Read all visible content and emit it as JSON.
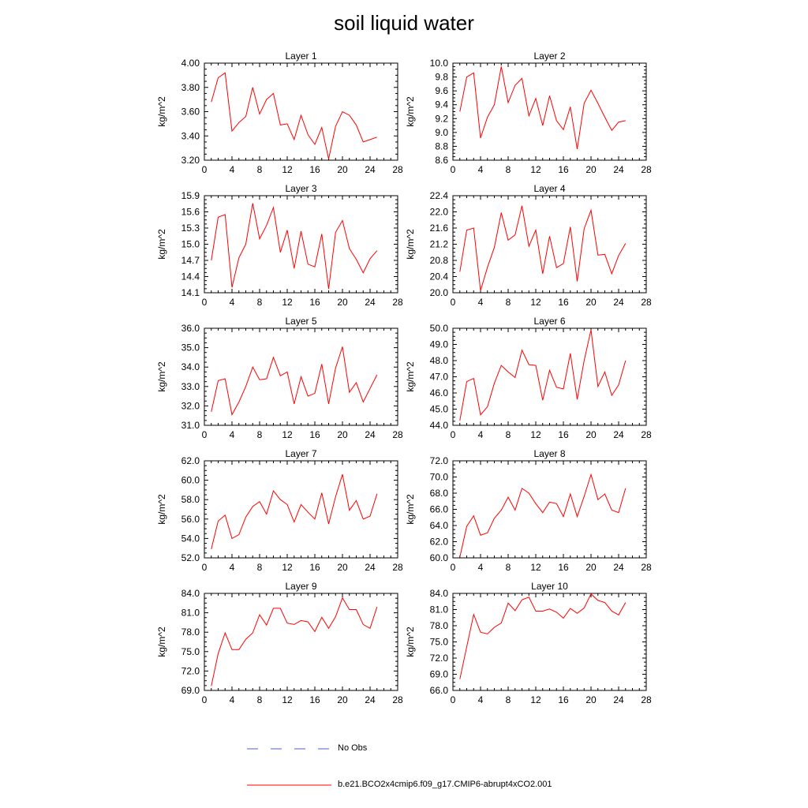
{
  "title": "soil liquid water",
  "legend": {
    "obs_label": "No Obs",
    "obs_color": "#4b5fc4",
    "model_label": "b.e21.BCO2x4cmip6.f09_g17.CMIP6-abrupt4xCO2.001",
    "model_color": "#ff0000"
  },
  "chart_data": [
    {
      "type": "line",
      "title": "Layer 1",
      "ylabel": "kg/m^2",
      "xlim": [
        0,
        28
      ],
      "xticks": [
        0,
        4,
        8,
        12,
        16,
        20,
        24,
        28
      ],
      "ylim": [
        3.2,
        4.0
      ],
      "yticks": [
        "3.20",
        "3.40",
        "3.60",
        "3.80",
        "4.00"
      ],
      "series": [
        {
          "color": "#ff0000",
          "x": [
            1,
            2,
            3,
            4,
            5,
            6,
            7,
            8,
            9,
            10,
            11,
            12,
            13,
            14,
            15,
            16,
            17,
            18,
            19,
            20,
            21,
            22,
            23,
            24,
            25
          ],
          "values": [
            3.68,
            3.88,
            3.92,
            3.44,
            3.51,
            3.56,
            3.8,
            3.58,
            3.7,
            3.75,
            3.49,
            3.5,
            3.37,
            3.57,
            3.41,
            3.33,
            3.47,
            3.21,
            3.48,
            3.6,
            3.57,
            3.49,
            3.35,
            3.37,
            3.39
          ]
        }
      ]
    },
    {
      "type": "line",
      "title": "Layer 2",
      "ylabel": "kg/m^2",
      "xlim": [
        0,
        28
      ],
      "xticks": [
        0,
        4,
        8,
        12,
        16,
        20,
        24,
        28
      ],
      "ylim": [
        8.6,
        10.0
      ],
      "yticks": [
        "8.6",
        "8.8",
        "9.0",
        "9.2",
        "9.4",
        "9.6",
        "9.8",
        "10.0"
      ],
      "series": [
        {
          "color": "#ff0000",
          "x": [
            1,
            2,
            3,
            4,
            5,
            6,
            7,
            8,
            9,
            10,
            11,
            12,
            13,
            14,
            15,
            16,
            17,
            18,
            19,
            20,
            21,
            22,
            23,
            24,
            25
          ],
          "values": [
            9.3,
            9.8,
            9.86,
            8.92,
            9.22,
            9.4,
            9.95,
            9.43,
            9.68,
            9.78,
            9.24,
            9.49,
            9.1,
            9.53,
            9.17,
            9.04,
            9.37,
            8.76,
            9.42,
            9.61,
            9.42,
            9.22,
            9.03,
            9.15,
            9.17
          ]
        }
      ]
    },
    {
      "type": "line",
      "title": "Layer 3",
      "ylabel": "kg/m^2",
      "xlim": [
        0,
        28
      ],
      "xticks": [
        0,
        4,
        8,
        12,
        16,
        20,
        24,
        28
      ],
      "ylim": [
        14.1,
        15.9
      ],
      "yticks": [
        "14.1",
        "14.4",
        "14.7",
        "15.0",
        "15.3",
        "15.6",
        "15.9"
      ],
      "series": [
        {
          "color": "#ff0000",
          "x": [
            1,
            2,
            3,
            4,
            5,
            6,
            7,
            8,
            9,
            10,
            11,
            12,
            13,
            14,
            15,
            16,
            17,
            18,
            19,
            20,
            21,
            22,
            23,
            24,
            25
          ],
          "values": [
            14.7,
            15.5,
            15.55,
            14.2,
            14.75,
            15.0,
            15.76,
            15.1,
            15.35,
            15.68,
            14.85,
            15.26,
            14.55,
            15.24,
            14.63,
            14.58,
            15.19,
            14.17,
            15.22,
            15.44,
            14.92,
            14.72,
            14.47,
            14.73,
            14.88
          ]
        }
      ]
    },
    {
      "type": "line",
      "title": "Layer 4",
      "ylabel": "kg/m^2",
      "xlim": [
        0,
        28
      ],
      "xticks": [
        0,
        4,
        8,
        12,
        16,
        20,
        24,
        28
      ],
      "ylim": [
        20.0,
        22.4
      ],
      "yticks": [
        "20.0",
        "20.4",
        "20.8",
        "21.2",
        "21.6",
        "22.0",
        "22.4"
      ],
      "series": [
        {
          "color": "#ff0000",
          "x": [
            1,
            2,
            3,
            4,
            5,
            6,
            7,
            8,
            9,
            10,
            11,
            12,
            13,
            14,
            15,
            16,
            17,
            18,
            19,
            20,
            21,
            22,
            23,
            24,
            25
          ],
          "values": [
            20.52,
            21.55,
            21.6,
            20.05,
            20.63,
            21.12,
            21.98,
            21.3,
            21.43,
            22.15,
            21.15,
            21.55,
            20.47,
            21.4,
            20.62,
            20.72,
            21.63,
            20.28,
            21.58,
            22.04,
            20.93,
            20.95,
            20.47,
            20.92,
            21.22
          ]
        }
      ]
    },
    {
      "type": "line",
      "title": "Layer 5",
      "ylabel": "kg/m^2",
      "xlim": [
        0,
        28
      ],
      "xticks": [
        0,
        4,
        8,
        12,
        16,
        20,
        24,
        28
      ],
      "ylim": [
        31.0,
        36.0
      ],
      "yticks": [
        "31.0",
        "32.0",
        "33.0",
        "34.0",
        "35.0",
        "36.0"
      ],
      "series": [
        {
          "color": "#ff0000",
          "x": [
            1,
            2,
            3,
            4,
            5,
            6,
            7,
            8,
            9,
            10,
            11,
            12,
            13,
            14,
            15,
            16,
            17,
            18,
            19,
            20,
            21,
            22,
            23,
            24,
            25
          ],
          "values": [
            31.7,
            33.3,
            33.4,
            31.55,
            32.2,
            33.0,
            34.0,
            33.35,
            33.4,
            34.5,
            33.55,
            33.75,
            32.1,
            33.5,
            32.5,
            32.65,
            34.15,
            32.1,
            33.95,
            35.05,
            32.7,
            33.2,
            32.2,
            32.9,
            33.6
          ]
        }
      ]
    },
    {
      "type": "line",
      "title": "Layer 6",
      "ylabel": "kg/m^2",
      "xlim": [
        0,
        28
      ],
      "xticks": [
        0,
        4,
        8,
        12,
        16,
        20,
        24,
        28
      ],
      "ylim": [
        44.0,
        50.0
      ],
      "yticks": [
        "44.0",
        "45.0",
        "46.0",
        "47.0",
        "48.0",
        "49.0",
        "50.0"
      ],
      "series": [
        {
          "color": "#ff0000",
          "x": [
            1,
            2,
            3,
            4,
            5,
            6,
            7,
            8,
            9,
            10,
            11,
            12,
            13,
            14,
            15,
            16,
            17,
            18,
            19,
            20,
            21,
            22,
            23,
            24,
            25
          ],
          "values": [
            44.3,
            46.7,
            46.9,
            44.65,
            45.15,
            46.6,
            47.7,
            47.3,
            46.95,
            48.65,
            47.75,
            47.7,
            45.55,
            47.4,
            46.35,
            46.25,
            48.45,
            45.6,
            48.0,
            49.9,
            46.4,
            47.3,
            45.85,
            46.5,
            48.0
          ]
        }
      ]
    },
    {
      "type": "line",
      "title": "Layer 7",
      "ylabel": "kg/m^2",
      "xlim": [
        0,
        28
      ],
      "xticks": [
        0,
        4,
        8,
        12,
        16,
        20,
        24,
        28
      ],
      "ylim": [
        52.0,
        62.0
      ],
      "yticks": [
        "52.0",
        "54.0",
        "56.0",
        "58.0",
        "60.0",
        "62.0"
      ],
      "series": [
        {
          "color": "#ff0000",
          "x": [
            1,
            2,
            3,
            4,
            5,
            6,
            7,
            8,
            9,
            10,
            11,
            12,
            13,
            14,
            15,
            16,
            17,
            18,
            19,
            20,
            21,
            22,
            23,
            24,
            25
          ],
          "values": [
            52.9,
            55.8,
            56.4,
            54.0,
            54.4,
            56.2,
            57.3,
            57.8,
            56.5,
            58.9,
            58.0,
            57.5,
            55.7,
            57.5,
            56.7,
            56.0,
            58.7,
            55.5,
            58.3,
            60.6,
            56.9,
            57.9,
            56.0,
            56.3,
            58.6
          ]
        }
      ]
    },
    {
      "type": "line",
      "title": "Layer 8",
      "ylabel": "kg/m^2",
      "xlim": [
        0,
        28
      ],
      "xticks": [
        0,
        4,
        8,
        12,
        16,
        20,
        24,
        28
      ],
      "ylim": [
        60.0,
        72.0
      ],
      "yticks": [
        "60.0",
        "62.0",
        "64.0",
        "66.0",
        "68.0",
        "70.0",
        "72.0"
      ],
      "series": [
        {
          "color": "#ff0000",
          "x": [
            1,
            2,
            3,
            4,
            5,
            6,
            7,
            8,
            9,
            10,
            11,
            12,
            13,
            14,
            15,
            16,
            17,
            18,
            19,
            20,
            21,
            22,
            23,
            24,
            25
          ],
          "values": [
            60.1,
            63.9,
            65.2,
            62.8,
            63.1,
            64.9,
            65.9,
            67.5,
            65.9,
            68.6,
            68.0,
            66.7,
            65.6,
            66.9,
            66.7,
            65.1,
            67.9,
            65.1,
            67.6,
            70.3,
            67.2,
            67.9,
            65.9,
            65.6,
            68.6
          ]
        }
      ]
    },
    {
      "type": "line",
      "title": "Layer 9",
      "ylabel": "kg/m^2",
      "xlim": [
        0,
        28
      ],
      "xticks": [
        0,
        4,
        8,
        12,
        16,
        20,
        24,
        28
      ],
      "ylim": [
        69.0,
        84.0
      ],
      "yticks": [
        "69.0",
        "72.0",
        "75.0",
        "78.0",
        "81.0",
        "84.0"
      ],
      "series": [
        {
          "color": "#ff0000",
          "x": [
            1,
            2,
            3,
            4,
            5,
            6,
            7,
            8,
            9,
            10,
            11,
            12,
            13,
            14,
            15,
            16,
            17,
            18,
            19,
            20,
            21,
            22,
            23,
            24,
            25
          ],
          "values": [
            69.7,
            74.7,
            77.9,
            75.3,
            75.3,
            76.9,
            77.9,
            80.7,
            79.1,
            81.7,
            81.7,
            79.4,
            79.2,
            79.8,
            79.6,
            78.1,
            80.3,
            78.6,
            80.4,
            83.3,
            81.5,
            81.5,
            79.2,
            78.6,
            81.9
          ]
        }
      ]
    },
    {
      "type": "line",
      "title": "Layer 10",
      "ylabel": "kg/m^2",
      "xlim": [
        0,
        28
      ],
      "xticks": [
        0,
        4,
        8,
        12,
        16,
        20,
        24,
        28
      ],
      "ylim": [
        66.0,
        84.0
      ],
      "yticks": [
        "66.0",
        "69.0",
        "72.0",
        "75.0",
        "78.0",
        "81.0",
        "84.0"
      ],
      "series": [
        {
          "color": "#ff0000",
          "x": [
            1,
            2,
            3,
            4,
            5,
            6,
            7,
            8,
            9,
            10,
            11,
            12,
            13,
            14,
            15,
            16,
            17,
            18,
            19,
            20,
            21,
            22,
            23,
            24,
            25
          ],
          "values": [
            68.1,
            74.1,
            80.1,
            76.8,
            76.5,
            77.7,
            78.5,
            82.2,
            80.8,
            82.8,
            83.3,
            80.7,
            80.7,
            81.1,
            80.5,
            79.4,
            81.2,
            80.3,
            81.3,
            83.9,
            82.7,
            82.3,
            80.7,
            80.0,
            82.3
          ]
        }
      ]
    }
  ]
}
